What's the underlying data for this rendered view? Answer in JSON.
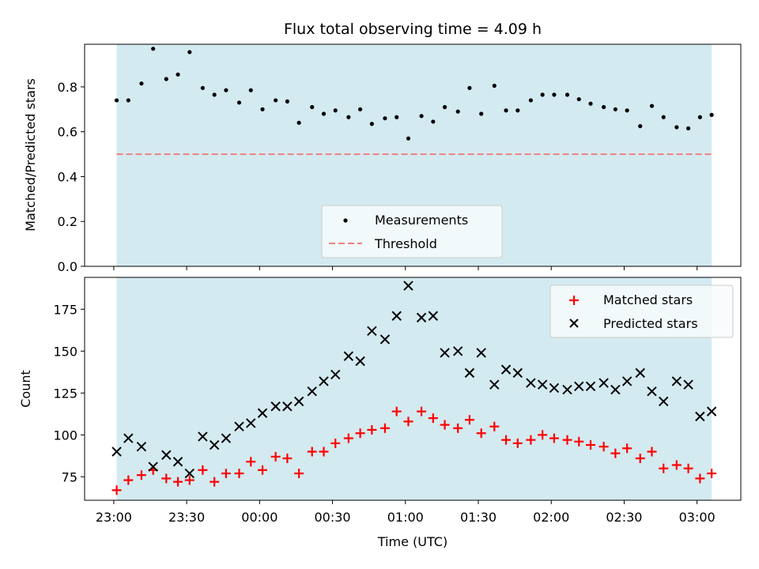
{
  "chart_data": {
    "type": "scatter",
    "title": "Flux total observing time = 4.09 h",
    "xlabel": "Time (UTC)",
    "x_tick_labels": [
      "23:00",
      "23:30",
      "00:00",
      "00:30",
      "01:00",
      "01:30",
      "02:00",
      "02:30",
      "03:00"
    ],
    "x_tick_hours": [
      23.0,
      23.5,
      24.0,
      24.5,
      25.0,
      25.5,
      26.0,
      26.5,
      27.0
    ],
    "xlim_hours": [
      22.8,
      27.3
    ],
    "shaded_range_hours": [
      23.02,
      27.1
    ],
    "shade_color": "#d3eaf0",
    "panels": [
      {
        "ylabel": "Matched/Predicted stars",
        "ylim": [
          0.0,
          0.99
        ],
        "yticks": [
          0.0,
          0.2,
          0.4,
          0.6,
          0.8
        ],
        "ytick_labels": [
          "0.0",
          "0.2",
          "0.4",
          "0.6",
          "0.8"
        ],
        "legend_position": "lower-center",
        "series": [
          {
            "name": "Measurements",
            "marker": "dot",
            "color": "#000000",
            "x_hours": [
              23.02,
              23.1,
              23.19,
              23.27,
              23.36,
              23.44,
              23.52,
              23.61,
              23.69,
              23.77,
              23.86,
              23.94,
              24.02,
              24.11,
              24.19,
              24.27,
              24.36,
              24.44,
              24.52,
              24.61,
              24.69,
              24.77,
              24.86,
              24.94,
              25.02,
              25.11,
              25.19,
              25.27,
              25.36,
              25.44,
              25.52,
              25.61,
              25.69,
              25.77,
              25.86,
              25.94,
              26.02,
              26.11,
              26.19,
              26.27,
              26.36,
              26.44,
              26.52,
              26.61,
              26.69,
              26.77,
              26.86,
              26.94,
              27.02,
              27.1
            ],
            "values": [
              0.74,
              0.74,
              0.815,
              0.97,
              0.835,
              0.855,
              0.955,
              0.795,
              0.765,
              0.785,
              0.73,
              0.785,
              0.7,
              0.74,
              0.735,
              0.64,
              0.71,
              0.68,
              0.695,
              0.665,
              0.7,
              0.635,
              0.66,
              0.665,
              0.57,
              0.67,
              0.645,
              0.71,
              0.69,
              0.795,
              0.68,
              0.805,
              0.695,
              0.695,
              0.74,
              0.765,
              0.765,
              0.765,
              0.745,
              0.725,
              0.71,
              0.7,
              0.695,
              0.625,
              0.715,
              0.665,
              0.62,
              0.615,
              0.665,
              0.675
            ]
          },
          {
            "name": "Threshold",
            "marker": "dashed-line",
            "color": "#f08080",
            "x_hours": [
              23.02,
              27.1
            ],
            "values": [
              0.5,
              0.5
            ]
          }
        ]
      },
      {
        "ylabel": "Count",
        "ylim": [
          61,
          194
        ],
        "yticks": [
          75,
          100,
          125,
          150,
          175
        ],
        "ytick_labels": [
          "75",
          "100",
          "125",
          "150",
          "175"
        ],
        "legend_position": "upper-right",
        "series": [
          {
            "name": "Matched stars",
            "marker": "plus",
            "color": "#ff0000",
            "x_hours": [
              23.02,
              23.1,
              23.19,
              23.27,
              23.36,
              23.44,
              23.52,
              23.61,
              23.69,
              23.77,
              23.86,
              23.94,
              24.02,
              24.11,
              24.19,
              24.27,
              24.36,
              24.44,
              24.52,
              24.61,
              24.69,
              24.77,
              24.86,
              24.94,
              25.02,
              25.11,
              25.19,
              25.27,
              25.36,
              25.44,
              25.52,
              25.61,
              25.69,
              25.77,
              25.86,
              25.94,
              26.02,
              26.11,
              26.19,
              26.27,
              26.36,
              26.44,
              26.52,
              26.61,
              26.69,
              26.77,
              26.86,
              26.94,
              27.02,
              27.1
            ],
            "values": [
              67,
              73,
              76,
              79,
              74,
              72,
              73,
              79,
              72,
              77,
              77,
              84,
              79,
              87,
              86,
              77,
              90,
              90,
              95,
              98,
              101,
              103,
              104,
              114,
              108,
              114,
              110,
              106,
              104,
              109,
              101,
              105,
              97,
              95,
              97,
              100,
              98,
              97,
              96,
              94,
              93,
              89,
              92,
              86,
              90,
              80,
              82,
              80,
              74,
              77
            ]
          },
          {
            "name": "Predicted stars",
            "marker": "x",
            "color": "#000000",
            "x_hours": [
              23.02,
              23.1,
              23.19,
              23.27,
              23.36,
              23.44,
              23.52,
              23.61,
              23.69,
              23.77,
              23.86,
              23.94,
              24.02,
              24.11,
              24.19,
              24.27,
              24.36,
              24.44,
              24.52,
              24.61,
              24.69,
              24.77,
              24.86,
              24.94,
              25.02,
              25.11,
              25.19,
              25.27,
              25.36,
              25.44,
              25.52,
              25.61,
              25.69,
              25.77,
              25.86,
              25.94,
              26.02,
              26.11,
              26.19,
              26.27,
              26.36,
              26.44,
              26.52,
              26.61,
              26.69,
              26.77,
              26.86,
              26.94,
              27.02,
              27.1
            ],
            "values": [
              90,
              98,
              93,
              81,
              88,
              84,
              77,
              99,
              94,
              98,
              105,
              107,
              113,
              117,
              117,
              120,
              126,
              132,
              136,
              147,
              144,
              162,
              157,
              171,
              189,
              170,
              171,
              149,
              150,
              137,
              149,
              130,
              139,
              137,
              131,
              130,
              128,
              127,
              129,
              129,
              131,
              127,
              132,
              137,
              126,
              120,
              132,
              130,
              111,
              114
            ]
          }
        ]
      }
    ]
  }
}
